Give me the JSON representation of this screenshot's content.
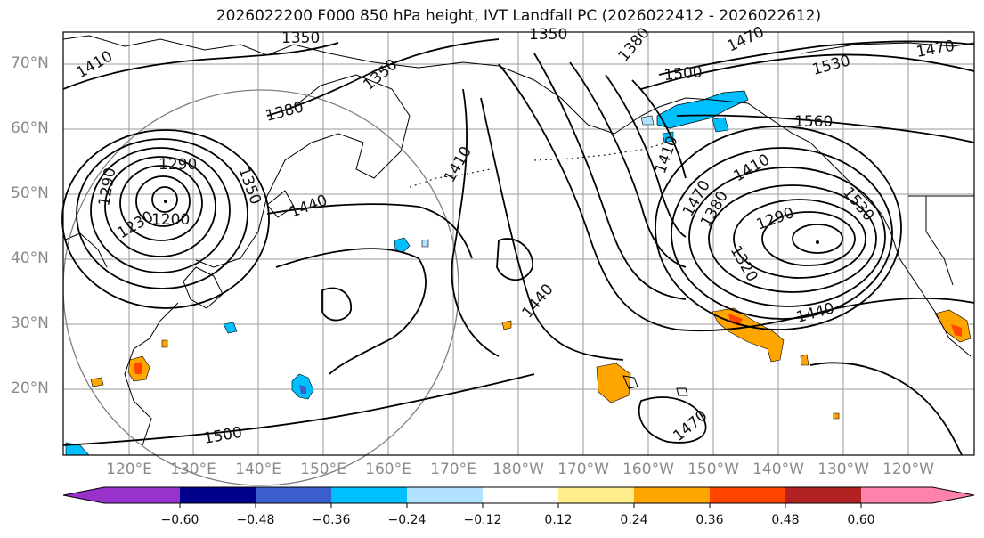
{
  "title": "2026022200 F000 850 hPa height, IVT Landfall PC (2026022412 - 2026022612)",
  "lat_labels": [
    "70°N",
    "60°N",
    "50°N",
    "40°N",
    "30°N",
    "20°N"
  ],
  "lon_labels": [
    "120°E",
    "130°E",
    "140°E",
    "150°E",
    "160°E",
    "170°E",
    "180°W",
    "170°W",
    "160°W",
    "150°W",
    "140°W",
    "130°W",
    "120°W"
  ],
  "contour_labels": [
    "1350",
    "1350",
    "1410",
    "1350",
    "1380",
    "1380",
    "1470",
    "1530",
    "1470",
    "1500",
    "1560",
    "1290",
    "1350",
    "1440",
    "1410",
    "1410",
    "1530",
    "1290",
    "1200",
    "1230",
    "1470",
    "1410",
    "1380",
    "1290",
    "1320",
    "1440",
    "1440",
    "1500",
    "1470"
  ],
  "colorbar": {
    "ticks": [
      "−0.60",
      "−0.48",
      "−0.36",
      "−0.24",
      "−0.12",
      "0.12",
      "0.24",
      "0.36",
      "0.48",
      "0.60"
    ],
    "colors": [
      "#9932cc",
      "#00008b",
      "#3a5fcd",
      "#00bfff",
      "#b0e2ff",
      "#ffffff",
      "#ffec8b",
      "#ffa500",
      "#ff4500",
      "#b22222",
      "#ff82ab"
    ]
  },
  "colors": {
    "contour": "#000000",
    "coast": "#000000",
    "grid": "#9a9a9a",
    "circle": "#7f7f7f"
  }
}
